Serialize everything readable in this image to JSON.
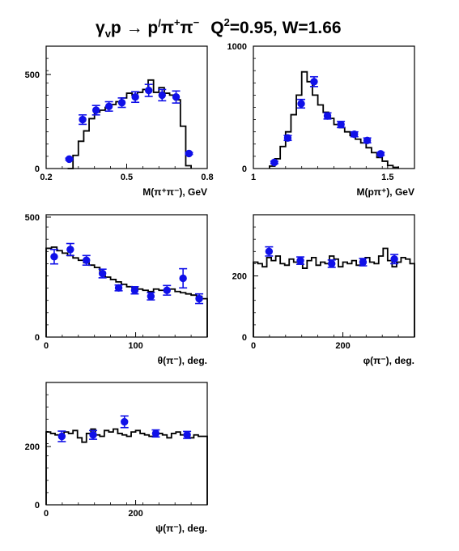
{
  "title": {
    "reaction_pre": "γ",
    "reaction_sub": "v",
    "reaction_mid": "p → p",
    "reaction_prime": "/",
    "reaction_pi1": "π",
    "reaction_sup1": "+",
    "reaction_pi2": "π",
    "reaction_sup2": "−",
    "q2_pre": "Q",
    "q2_sup": "2",
    "q2_post": "=0.95, W=1.66"
  },
  "chart_data": [
    {
      "type": "histogram+points",
      "id": "m-pipi",
      "xlabel": "M(π⁺π⁻), GeV",
      "xlim": [
        0.2,
        0.8
      ],
      "ylim": [
        0,
        650
      ],
      "xticks": [
        0.2,
        0.5,
        0.8
      ],
      "xtick_labels": [
        "0.2",
        "0.5",
        "0.8"
      ],
      "yticks": [
        0,
        500
      ],
      "ytick_labels": [
        "0",
        "500"
      ],
      "hist": {
        "edges": [
          0.28,
          0.3,
          0.32,
          0.34,
          0.36,
          0.38,
          0.4,
          0.42,
          0.44,
          0.46,
          0.48,
          0.5,
          0.52,
          0.54,
          0.56,
          0.58,
          0.6,
          0.62,
          0.64,
          0.66,
          0.68,
          0.7,
          0.72,
          0.74
        ],
        "values": [
          0,
          70,
          145,
          200,
          265,
          300,
          310,
          325,
          340,
          355,
          375,
          400,
          390,
          405,
          420,
          470,
          405,
          430,
          400,
          390,
          365,
          225,
          15
        ]
      },
      "points": [
        {
          "x": 0.286,
          "y": 50,
          "err": 5
        },
        {
          "x": 0.336,
          "y": 260,
          "err": 25
        },
        {
          "x": 0.386,
          "y": 310,
          "err": 25
        },
        {
          "x": 0.434,
          "y": 330,
          "err": 25
        },
        {
          "x": 0.482,
          "y": 350,
          "err": 25
        },
        {
          "x": 0.532,
          "y": 380,
          "err": 28
        },
        {
          "x": 0.582,
          "y": 415,
          "err": 32
        },
        {
          "x": 0.632,
          "y": 390,
          "err": 30
        },
        {
          "x": 0.684,
          "y": 380,
          "err": 32
        },
        {
          "x": 0.732,
          "y": 80,
          "err": 5
        }
      ]
    },
    {
      "type": "histogram+points",
      "id": "m-ppip",
      "xlabel": "M(pπ⁺), GeV",
      "xlim": [
        1.0,
        1.6
      ],
      "ylim": [
        0,
        1000
      ],
      "xticks": [
        1.0,
        1.5
      ],
      "xtick_labels": [
        "1",
        "1.5"
      ],
      "yticks": [
        0,
        1000
      ],
      "ytick_labels": [
        "0",
        "1000"
      ],
      "hist": {
        "edges": [
          1.06,
          1.08,
          1.1,
          1.12,
          1.14,
          1.16,
          1.18,
          1.2,
          1.22,
          1.24,
          1.26,
          1.28,
          1.3,
          1.32,
          1.34,
          1.36,
          1.38,
          1.4,
          1.42,
          1.44,
          1.46,
          1.48,
          1.5,
          1.52,
          1.54
        ],
        "values": [
          20,
          80,
          180,
          300,
          440,
          600,
          790,
          710,
          600,
          520,
          460,
          410,
          360,
          335,
          300,
          270,
          240,
          210,
          170,
          130,
          90,
          60,
          25,
          10
        ]
      },
      "points": [
        {
          "x": 1.078,
          "y": 50,
          "err": 10
        },
        {
          "x": 1.128,
          "y": 250,
          "err": 20
        },
        {
          "x": 1.178,
          "y": 530,
          "err": 35
        },
        {
          "x": 1.226,
          "y": 710,
          "err": 40
        },
        {
          "x": 1.276,
          "y": 430,
          "err": 25
        },
        {
          "x": 1.326,
          "y": 360,
          "err": 25
        },
        {
          "x": 1.376,
          "y": 280,
          "err": 20
        },
        {
          "x": 1.424,
          "y": 230,
          "err": 20
        },
        {
          "x": 1.474,
          "y": 120,
          "err": 12
        }
      ]
    },
    {
      "type": "histogram+points",
      "id": "theta-pim",
      "xlabel": "θ(π⁻), deg.",
      "xlim": [
        0,
        180
      ],
      "ylim": [
        0,
        510
      ],
      "xticks": [
        0,
        100
      ],
      "xtick_labels": [
        "0",
        "100"
      ],
      "yticks": [
        0,
        500
      ],
      "ytick_labels": [
        "0",
        "500"
      ],
      "hist": {
        "edges": [
          0,
          6,
          12,
          18,
          24,
          30,
          36,
          42,
          48,
          54,
          60,
          66,
          72,
          78,
          84,
          90,
          96,
          102,
          108,
          114,
          120,
          126,
          132,
          138,
          144,
          150,
          156,
          162,
          168,
          174,
          180
        ],
        "values": [
          370,
          375,
          360,
          350,
          340,
          330,
          320,
          310,
          300,
          290,
          270,
          250,
          240,
          230,
          220,
          210,
          205,
          200,
          195,
          190,
          200,
          195,
          190,
          200,
          190,
          185,
          180,
          175,
          170,
          160
        ]
      },
      "points": [
        {
          "x": 9,
          "y": 335,
          "err": 30
        },
        {
          "x": 27,
          "y": 365,
          "err": 25
        },
        {
          "x": 45,
          "y": 320,
          "err": 20
        },
        {
          "x": 63,
          "y": 265,
          "err": 18
        },
        {
          "x": 81,
          "y": 205,
          "err": 12
        },
        {
          "x": 99,
          "y": 195,
          "err": 15
        },
        {
          "x": 117,
          "y": 170,
          "err": 15
        },
        {
          "x": 135,
          "y": 195,
          "err": 20
        },
        {
          "x": 153,
          "y": 245,
          "err": 40
        },
        {
          "x": 171,
          "y": 160,
          "err": 20
        }
      ]
    },
    {
      "type": "histogram+points",
      "id": "phi-pim",
      "xlabel": "φ(π⁻), deg.",
      "xlim": [
        0,
        360
      ],
      "ylim": [
        0,
        400
      ],
      "xticks": [
        0,
        200
      ],
      "xtick_labels": [
        "0",
        "200"
      ],
      "yticks": [
        0,
        200
      ],
      "ytick_labels": [
        "0",
        "200"
      ],
      "hist": {
        "edges": [
          0,
          10,
          20,
          30,
          40,
          50,
          60,
          70,
          80,
          90,
          100,
          110,
          120,
          130,
          140,
          150,
          160,
          170,
          180,
          190,
          200,
          210,
          220,
          230,
          240,
          250,
          260,
          270,
          280,
          290,
          300,
          310,
          320,
          330,
          340,
          350,
          360
        ],
        "values": [
          245,
          240,
          230,
          260,
          250,
          265,
          240,
          235,
          255,
          245,
          240,
          225,
          250,
          260,
          235,
          245,
          240,
          265,
          255,
          230,
          245,
          240,
          250,
          235,
          255,
          260,
          245,
          240,
          265,
          290,
          250,
          230,
          245,
          260,
          255,
          240
        ]
      },
      "points": [
        {
          "x": 35,
          "y": 280,
          "err": 15
        },
        {
          "x": 105,
          "y": 250,
          "err": 12
        },
        {
          "x": 175,
          "y": 240,
          "err": 12
        },
        {
          "x": 245,
          "y": 245,
          "err": 12
        },
        {
          "x": 315,
          "y": 255,
          "err": 15
        }
      ]
    },
    {
      "type": "histogram+points",
      "id": "psi-pim",
      "xlabel": "ψ(π⁻), deg.",
      "xlim": [
        0,
        360
      ],
      "ylim": [
        0,
        420
      ],
      "xticks": [
        0,
        200
      ],
      "xtick_labels": [
        "0",
        "200"
      ],
      "yticks": [
        0,
        200
      ],
      "ytick_labels": [
        "0",
        "200"
      ],
      "hist": {
        "edges": [
          0,
          10,
          20,
          30,
          40,
          50,
          60,
          70,
          80,
          90,
          100,
          110,
          120,
          130,
          140,
          150,
          160,
          170,
          180,
          190,
          200,
          210,
          220,
          230,
          240,
          250,
          260,
          270,
          280,
          290,
          300,
          310,
          320,
          330,
          340,
          350,
          360
        ],
        "values": [
          250,
          245,
          240,
          235,
          250,
          245,
          255,
          230,
          215,
          245,
          260,
          240,
          235,
          255,
          250,
          260,
          245,
          240,
          235,
          250,
          255,
          245,
          240,
          235,
          250,
          245,
          240,
          230,
          245,
          250,
          240,
          235,
          230,
          240,
          235,
          235
        ]
      },
      "points": [
        {
          "x": 35,
          "y": 235,
          "err": 18
        },
        {
          "x": 105,
          "y": 240,
          "err": 15
        },
        {
          "x": 175,
          "y": 285,
          "err": 20
        },
        {
          "x": 245,
          "y": 245,
          "err": 12
        },
        {
          "x": 315,
          "y": 240,
          "err": 12
        }
      ]
    }
  ]
}
